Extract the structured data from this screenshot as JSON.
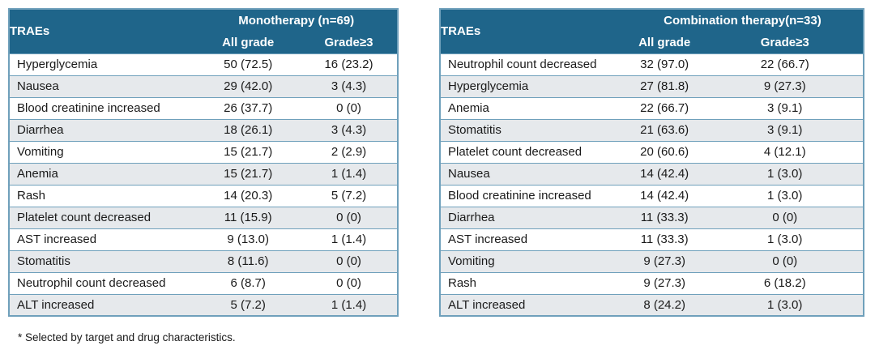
{
  "colors": {
    "header_bg": "#1F658A",
    "header_text": "#ffffff",
    "row_bg": "#ffffff",
    "row_alt_bg": "#E6E9EC",
    "border": "#6FA0BB",
    "text": "#1a1a1a"
  },
  "footnote": "* Selected by target and drug characteristics.",
  "tables": [
    {
      "id": "monotherapy",
      "corner_label": "TRAEs",
      "group_header": "Monotherapy (n=69)",
      "columns": [
        "All grade",
        "Grade≥3"
      ],
      "rows": [
        {
          "label": "Hyperglycemia",
          "all_grade": "50 (72.5)",
          "grade3": "16 (23.2)"
        },
        {
          "label": "Nausea",
          "all_grade": "29 (42.0)",
          "grade3": "3 (4.3)"
        },
        {
          "label": "Blood creatinine increased",
          "all_grade": "26 (37.7)",
          "grade3": "0 (0)"
        },
        {
          "label": "Diarrhea",
          "all_grade": "18 (26.1)",
          "grade3": "3 (4.3)"
        },
        {
          "label": "Vomiting",
          "all_grade": "15 (21.7)",
          "grade3": "2 (2.9)"
        },
        {
          "label": "Anemia",
          "all_grade": "15 (21.7)",
          "grade3": "1 (1.4)"
        },
        {
          "label": "Rash",
          "all_grade": "14 (20.3)",
          "grade3": "5 (7.2)"
        },
        {
          "label": "Platelet count decreased",
          "all_grade": "11 (15.9)",
          "grade3": "0 (0)"
        },
        {
          "label": "AST increased",
          "all_grade": "9 (13.0)",
          "grade3": "1 (1.4)"
        },
        {
          "label": "Stomatitis",
          "all_grade": "8 (11.6)",
          "grade3": "0 (0)"
        },
        {
          "label": "Neutrophil count decreased",
          "all_grade": "6 (8.7)",
          "grade3": "0 (0)"
        },
        {
          "label": "ALT increased",
          "all_grade": "5 (7.2)",
          "grade3": "1 (1.4)"
        }
      ]
    },
    {
      "id": "combination",
      "corner_label": "TRAEs",
      "group_header": "Combination therapy(n=33)",
      "columns": [
        "All grade",
        "Grade≥3"
      ],
      "rows": [
        {
          "label": "Neutrophil count decreased",
          "all_grade": "32 (97.0)",
          "grade3": "22 (66.7)"
        },
        {
          "label": "Hyperglycemia",
          "all_grade": "27 (81.8)",
          "grade3": "9 (27.3)"
        },
        {
          "label": "Anemia",
          "all_grade": "22 (66.7)",
          "grade3": "3 (9.1)"
        },
        {
          "label": "Stomatitis",
          "all_grade": "21 (63.6)",
          "grade3": "3 (9.1)"
        },
        {
          "label": "Platelet count decreased",
          "all_grade": "20 (60.6)",
          "grade3": "4 (12.1)"
        },
        {
          "label": "Nausea",
          "all_grade": "14 (42.4)",
          "grade3": "1 (3.0)"
        },
        {
          "label": "Blood creatinine increased",
          "all_grade": "14 (42.4)",
          "grade3": "1 (3.0)"
        },
        {
          "label": "Diarrhea",
          "all_grade": "11 (33.3)",
          "grade3": "0 (0)"
        },
        {
          "label": "AST increased",
          "all_grade": "11 (33.3)",
          "grade3": "1 (3.0)"
        },
        {
          "label": "Vomiting",
          "all_grade": "9 (27.3)",
          "grade3": "0 (0)"
        },
        {
          "label": "Rash",
          "all_grade": "9 (27.3)",
          "grade3": "6 (18.2)"
        },
        {
          "label": "ALT increased",
          "all_grade": "8 (24.2)",
          "grade3": "1 (3.0)"
        }
      ]
    }
  ]
}
